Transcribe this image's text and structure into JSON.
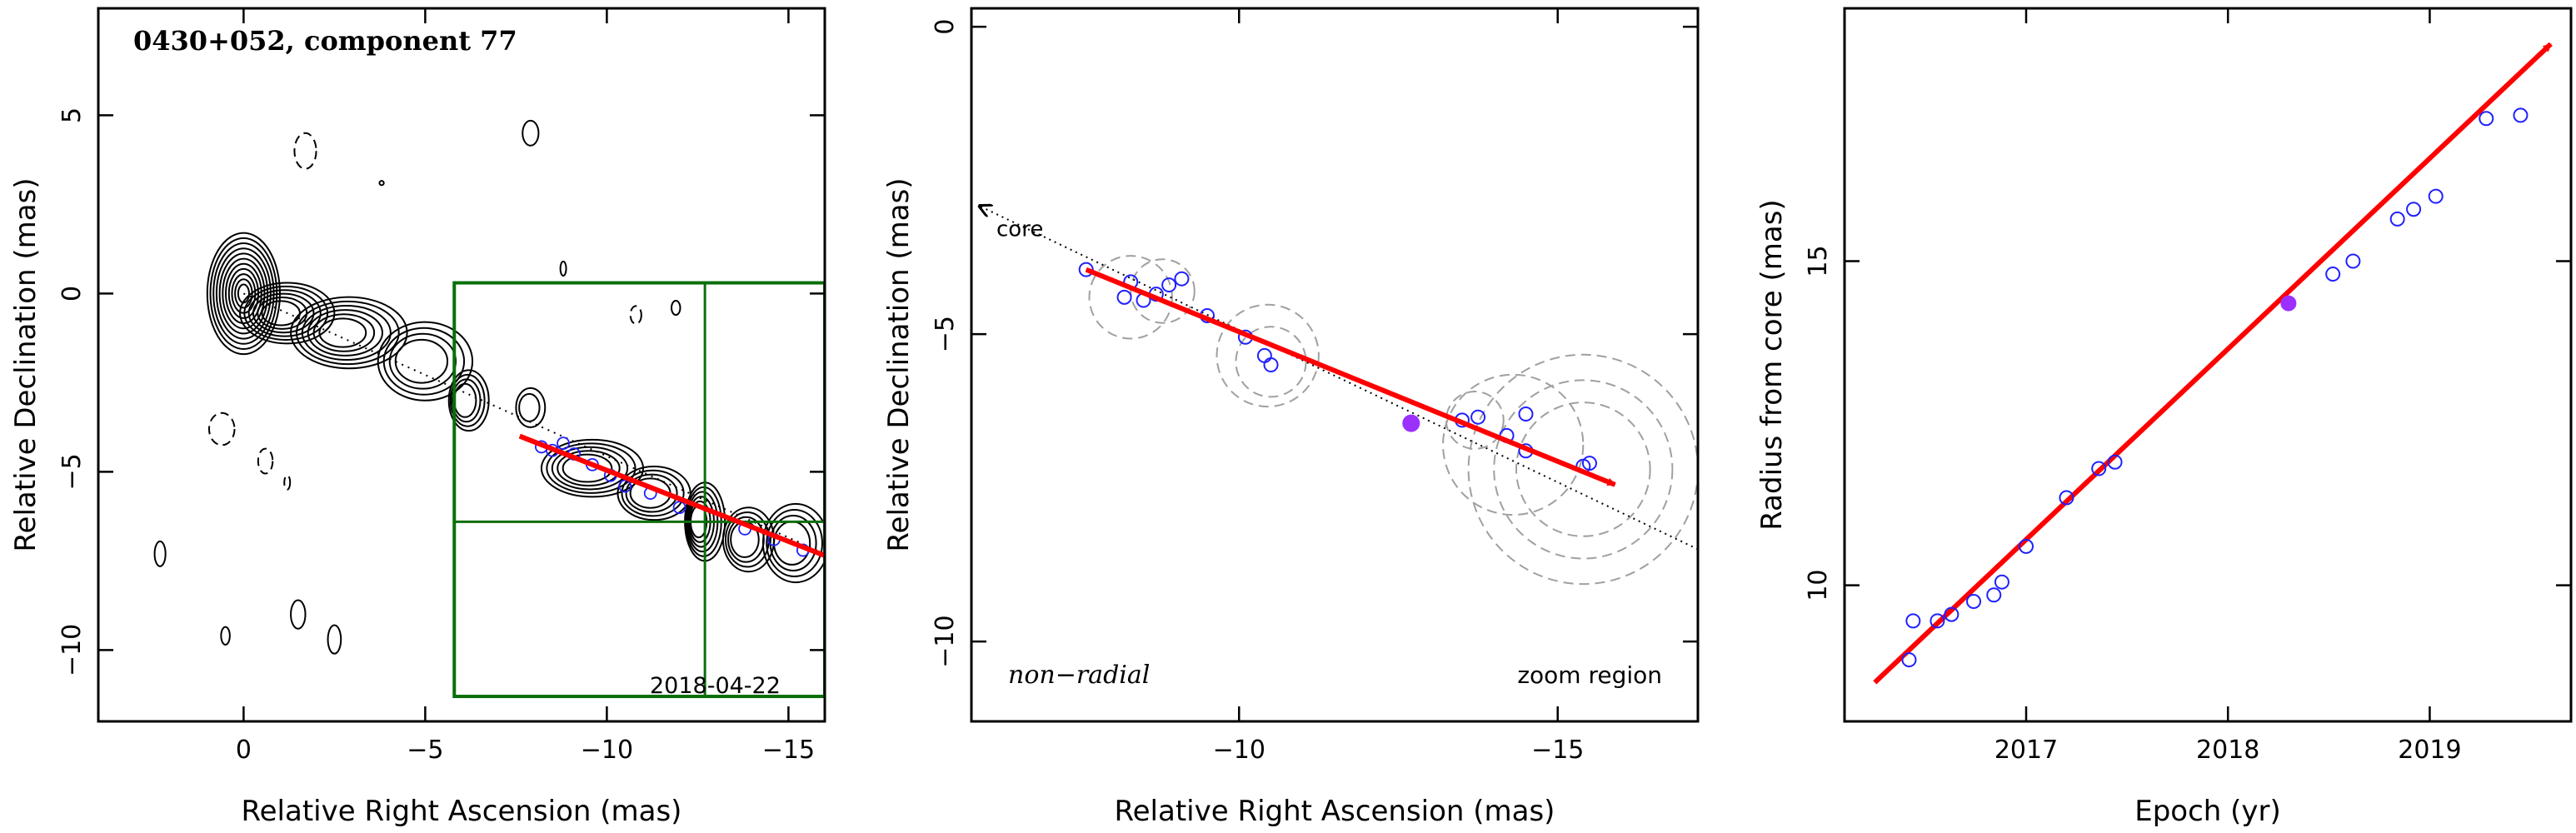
{
  "chart_data": [
    {
      "type": "contour",
      "title": "0430+052, component 77",
      "xlabel": "Relative Right Ascension (mas)",
      "ylabel": "Relative Declination (mas)",
      "xlim": [
        4,
        -16
      ],
      "ylim": [
        -12,
        8
      ],
      "xticks": [
        0,
        -5,
        -10,
        -15
      ],
      "yticks": [
        5,
        0,
        -5,
        -10
      ],
      "xtick_labels": [
        "0",
        "−5",
        "−10",
        "−15"
      ],
      "ytick_labels": [
        "5",
        "0",
        "−5",
        "−10"
      ],
      "epoch_label": "2018-04-22",
      "zoom_box": {
        "x": [
          -5.8,
          -16
        ],
        "y": [
          0.3,
          -11.3
        ]
      },
      "crosshair": {
        "x": -12.7,
        "y": -6.4
      },
      "core_direction_line": [
        [
          0,
          0
        ],
        [
          -16,
          -7.3
        ]
      ],
      "motion_vector": {
        "from": [
          -7.6,
          -4.0
        ],
        "to": [
          -16,
          -7.35
        ]
      },
      "component_positions": [
        {
          "x": -8.2,
          "y": -4.3
        },
        {
          "x": -8.5,
          "y": -4.4
        },
        {
          "x": -8.8,
          "y": -4.2
        },
        {
          "x": -9.1,
          "y": -4.5
        },
        {
          "x": -9.6,
          "y": -4.8
        },
        {
          "x": -10.1,
          "y": -5.1
        },
        {
          "x": -10.5,
          "y": -5.4
        },
        {
          "x": -11.2,
          "y": -5.6
        },
        {
          "x": -12.0,
          "y": -6.0
        },
        {
          "x": -13.8,
          "y": -6.6
        },
        {
          "x": -14.6,
          "y": -6.9
        },
        {
          "x": -15.4,
          "y": -7.2
        }
      ],
      "jet_knots": [
        {
          "x": 0,
          "y": 0,
          "rx": 1.0,
          "ry": 1.7,
          "levels": 11,
          "step": 0.085
        },
        {
          "x": -1.2,
          "y": -0.55,
          "rx": 1.3,
          "ry": 0.85,
          "levels": 6,
          "step": 0.12
        },
        {
          "x": -2.9,
          "y": -1.1,
          "rx": 1.6,
          "ry": 1.0,
          "levels": 6,
          "step": 0.12
        },
        {
          "x": -5.0,
          "y": -1.9,
          "rx": 1.3,
          "ry": 1.1,
          "levels": 4,
          "step": 0.15
        },
        {
          "x": -6.2,
          "y": -3.0,
          "rx": 0.55,
          "ry": 0.85,
          "levels": 4,
          "step": 0.15
        },
        {
          "x": -7.9,
          "y": -3.2,
          "rx": 0.4,
          "ry": 0.55,
          "levels": 2,
          "step": 0.3
        },
        {
          "x": -9.6,
          "y": -4.9,
          "rx": 1.4,
          "ry": 0.8,
          "levels": 5,
          "step": 0.13
        },
        {
          "x": -11.3,
          "y": -5.6,
          "rx": 1.0,
          "ry": 0.75,
          "levels": 4,
          "step": 0.15
        },
        {
          "x": -12.7,
          "y": -6.4,
          "rx": 0.55,
          "ry": 1.1,
          "levels": 6,
          "step": 0.12
        },
        {
          "x": -13.9,
          "y": -6.9,
          "rx": 0.7,
          "ry": 0.9,
          "levels": 4,
          "step": 0.15
        },
        {
          "x": -15.2,
          "y": -7.0,
          "rx": 0.9,
          "ry": 1.1,
          "levels": 4,
          "step": 0.15
        }
      ],
      "isolated_contours": [
        {
          "x": -7.9,
          "y": 4.5,
          "rx": 0.22,
          "ry": 0.35,
          "dashed": false
        },
        {
          "x": -1.7,
          "y": 4.0,
          "rx": 0.3,
          "ry": 0.5,
          "dashed": true
        },
        {
          "x": -3.8,
          "y": 3.1,
          "rx": 0.06,
          "ry": 0.06,
          "dashed": false
        },
        {
          "x": -8.8,
          "y": 0.7,
          "rx": 0.08,
          "ry": 0.2,
          "dashed": false
        },
        {
          "x": -10.8,
          "y": -0.6,
          "rx": 0.15,
          "ry": 0.25,
          "dashed": true
        },
        {
          "x": -11.9,
          "y": -0.4,
          "rx": 0.12,
          "ry": 0.2,
          "dashed": false
        },
        {
          "x": 0.6,
          "y": -3.8,
          "rx": 0.35,
          "ry": 0.45,
          "dashed": true
        },
        {
          "x": -0.6,
          "y": -4.7,
          "rx": 0.2,
          "ry": 0.35,
          "dashed": true
        },
        {
          "x": -1.2,
          "y": -5.3,
          "rx": 0.08,
          "ry": 0.2,
          "dashed": true
        },
        {
          "x": 2.3,
          "y": -7.3,
          "rx": 0.15,
          "ry": 0.35,
          "dashed": false
        },
        {
          "x": 0.5,
          "y": -9.6,
          "rx": 0.12,
          "ry": 0.25,
          "dashed": false
        },
        {
          "x": -1.5,
          "y": -9.0,
          "rx": 0.2,
          "ry": 0.4,
          "dashed": false
        },
        {
          "x": -2.5,
          "y": -9.7,
          "rx": 0.18,
          "ry": 0.4,
          "dashed": false
        }
      ]
    },
    {
      "type": "scatter",
      "xlabel": "Relative Right Ascension (mas)",
      "ylabel": "Relative Declination (mas)",
      "xlim": [
        -5.8,
        -17.2
      ],
      "ylim": [
        -11.3,
        0.3
      ],
      "xticks": [
        -10,
        -15
      ],
      "yticks": [
        0,
        -5,
        -10
      ],
      "xtick_labels": [
        "−10",
        "−15"
      ],
      "ytick_labels": [
        "0",
        "−5",
        "−10"
      ],
      "annotations": {
        "motion_type": "non−radial",
        "zoom": "zoom region",
        "core_arrow": "core"
      },
      "core_direction_line": [
        [
          -5.8,
          -2.85
        ],
        [
          -17.2,
          -8.5
        ]
      ],
      "motion_vector": {
        "from": [
          -7.6,
          -3.95
        ],
        "to": [
          -15.9,
          -7.45
        ]
      },
      "points": [
        {
          "x": -7.6,
          "y": -3.95
        },
        {
          "x": -8.2,
          "y": -4.4
        },
        {
          "x": -8.3,
          "y": -4.15
        },
        {
          "x": -8.5,
          "y": -4.45
        },
        {
          "x": -8.7,
          "y": -4.35
        },
        {
          "x": -8.9,
          "y": -4.2
        },
        {
          "x": -9.1,
          "y": -4.1
        },
        {
          "x": -9.5,
          "y": -4.7
        },
        {
          "x": -10.1,
          "y": -5.05
        },
        {
          "x": -10.4,
          "y": -5.35
        },
        {
          "x": -10.5,
          "y": -5.5
        },
        {
          "x": -13.5,
          "y": -6.4
        },
        {
          "x": -13.75,
          "y": -6.35
        },
        {
          "x": -14.2,
          "y": -6.65
        },
        {
          "x": -14.5,
          "y": -6.3
        },
        {
          "x": -14.5,
          "y": -6.9
        },
        {
          "x": -15.4,
          "y": -7.15
        },
        {
          "x": -15.5,
          "y": -7.1
        }
      ],
      "highlighted_point": {
        "x": -12.7,
        "y": -6.45
      },
      "error_circles": [
        {
          "x": -8.3,
          "y": -4.4,
          "r": 0.65
        },
        {
          "x": -8.8,
          "y": -4.3,
          "r": 0.5
        },
        {
          "x": -10.5,
          "y": -5.45,
          "r": 0.55
        },
        {
          "x": -10.45,
          "y": -5.35,
          "r": 0.8
        },
        {
          "x": -13.7,
          "y": -6.4,
          "r": 0.45
        },
        {
          "x": -14.3,
          "y": -6.8,
          "r": 1.1
        },
        {
          "x": -15.4,
          "y": -7.2,
          "r": 1.05
        },
        {
          "x": -15.4,
          "y": -7.2,
          "r": 1.4
        },
        {
          "x": -15.4,
          "y": -7.2,
          "r": 1.8
        }
      ]
    },
    {
      "type": "scatter",
      "xlabel": "Epoch (yr)",
      "ylabel": "Radius from core (mas)",
      "xlim": [
        2016.1,
        2019.7
      ],
      "ylim": [
        7.9,
        18.9
      ],
      "xticks": [
        2017,
        2018,
        2019
      ],
      "yticks": [
        10,
        15
      ],
      "xtick_labels": [
        "2017",
        "2018",
        "2019"
      ],
      "ytick_labels": [
        "10",
        "15"
      ],
      "fit_line": {
        "from": [
          2016.25,
          8.5
        ],
        "to": [
          2019.6,
          18.35
        ]
      },
      "points": [
        {
          "x": 2016.42,
          "y": 8.85
        },
        {
          "x": 2016.44,
          "y": 9.45
        },
        {
          "x": 2016.56,
          "y": 9.45
        },
        {
          "x": 2016.63,
          "y": 9.55
        },
        {
          "x": 2016.74,
          "y": 9.75
        },
        {
          "x": 2016.84,
          "y": 9.85
        },
        {
          "x": 2016.88,
          "y": 10.05
        },
        {
          "x": 2017.0,
          "y": 10.6
        },
        {
          "x": 2017.2,
          "y": 11.35
        },
        {
          "x": 2017.36,
          "y": 11.8
        },
        {
          "x": 2017.44,
          "y": 11.9
        },
        {
          "x": 2018.52,
          "y": 14.8
        },
        {
          "x": 2018.62,
          "y": 15.0
        },
        {
          "x": 2018.84,
          "y": 15.65
        },
        {
          "x": 2018.92,
          "y": 15.8
        },
        {
          "x": 2019.03,
          "y": 16.0
        },
        {
          "x": 2019.28,
          "y": 17.2
        },
        {
          "x": 2019.45,
          "y": 17.25
        }
      ],
      "highlighted_point": {
        "x": 2018.3,
        "y": 14.35
      }
    }
  ],
  "colors": {
    "vector": "#ff0000",
    "points": "#2020ff",
    "highlight": "#9b30ff",
    "zoom_box": "#0b6e0b",
    "circles": "#a0a0a0",
    "contours": "#000000"
  }
}
